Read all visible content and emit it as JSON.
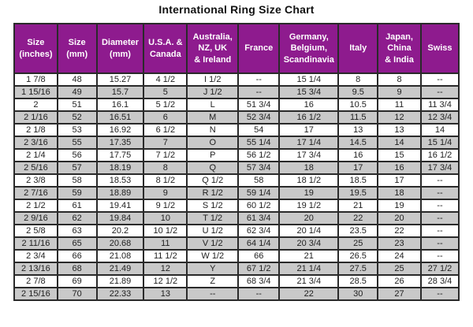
{
  "title": "International Ring Size Chart",
  "colors": {
    "header_bg": "#8e1b8e",
    "header_text": "#ffffff",
    "row_stripe": "#c9c9c9",
    "row_bg": "#ffffff",
    "border": "#2a2a2a",
    "text": "#1f1f1f",
    "title_text": "#111111"
  },
  "chart_data": {
    "type": "table",
    "title": "International Ring Size Chart",
    "columns": [
      "Size\n(inches)",
      "Size\n(mm)",
      "Diameter\n(mm)",
      "U.S.A. &\nCanada",
      "Australia,\nNZ, UK\n& Ireland",
      "France",
      "Germany,\nBelgium,\nScandinavia",
      "Italy",
      "Japan,\nChina\n& India",
      "Swiss"
    ],
    "rows": [
      [
        "1 7/8",
        "48",
        "15.27",
        "4 1/2",
        "I 1/2",
        "--",
        "15 1/4",
        "8",
        "8",
        "--"
      ],
      [
        "1 15/16",
        "49",
        "15.7",
        "5",
        "J 1/2",
        "--",
        "15 3/4",
        "9.5",
        "9",
        "--"
      ],
      [
        "2",
        "51",
        "16.1",
        "5 1/2",
        "L",
        "51 3/4",
        "16",
        "10.5",
        "11",
        "11 3/4"
      ],
      [
        "2 1/16",
        "52",
        "16.51",
        "6",
        "M",
        "52 3/4",
        "16 1/2",
        "11.5",
        "12",
        "12 3/4"
      ],
      [
        "2 1/8",
        "53",
        "16.92",
        "6 1/2",
        "N",
        "54",
        "17",
        "13",
        "13",
        "14"
      ],
      [
        "2 3/16",
        "55",
        "17.35",
        "7",
        "O",
        "55 1/4",
        "17 1/4",
        "14.5",
        "14",
        "15 1/4"
      ],
      [
        "2 1/4",
        "56",
        "17.75",
        "7 1/2",
        "P",
        "56 1/2",
        "17 3/4",
        "16",
        "15",
        "16 1/2"
      ],
      [
        "2 5/16",
        "57",
        "18.19",
        "8",
        "Q",
        "57 3/4",
        "18",
        "17",
        "16",
        "17 3/4"
      ],
      [
        "2 3/8",
        "58",
        "18.53",
        "8 1/2",
        "Q 1/2",
        "58",
        "18 1/2",
        "18.5",
        "17",
        "--"
      ],
      [
        "2 7/16",
        "59",
        "18.89",
        "9",
        "R 1/2",
        "59 1/4",
        "19",
        "19.5",
        "18",
        "--"
      ],
      [
        "2 1/2",
        "61",
        "19.41",
        "9 1/2",
        "S 1/2",
        "60 1/2",
        "19 1/2",
        "21",
        "19",
        "--"
      ],
      [
        "2 9/16",
        "62",
        "19.84",
        "10",
        "T 1/2",
        "61 3/4",
        "20",
        "22",
        "20",
        "--"
      ],
      [
        "2 5/8",
        "63",
        "20.2",
        "10 1/2",
        "U 1/2",
        "62 3/4",
        "20 1/4",
        "23.5",
        "22",
        "--"
      ],
      [
        "2 11/16",
        "65",
        "20.68",
        "11",
        "V 1/2",
        "64 1/4",
        "20 3/4",
        "25",
        "23",
        "--"
      ],
      [
        "2 3/4",
        "66",
        "21.08",
        "11 1/2",
        "W 1/2",
        "66",
        "21",
        "26.5",
        "24",
        "--"
      ],
      [
        "2 13/16",
        "68",
        "21.49",
        "12",
        "Y",
        "67 1/2",
        "21 1/4",
        "27.5",
        "25",
        "27 1/2"
      ],
      [
        "2 7/8",
        "69",
        "21.89",
        "12 1/2",
        "Z",
        "68 3/4",
        "21 3/4",
        "28.5",
        "26",
        "28 3/4"
      ],
      [
        "2 15/16",
        "70",
        "22.33",
        "13",
        "--",
        "--",
        "22",
        "30",
        "27",
        "--"
      ]
    ]
  }
}
